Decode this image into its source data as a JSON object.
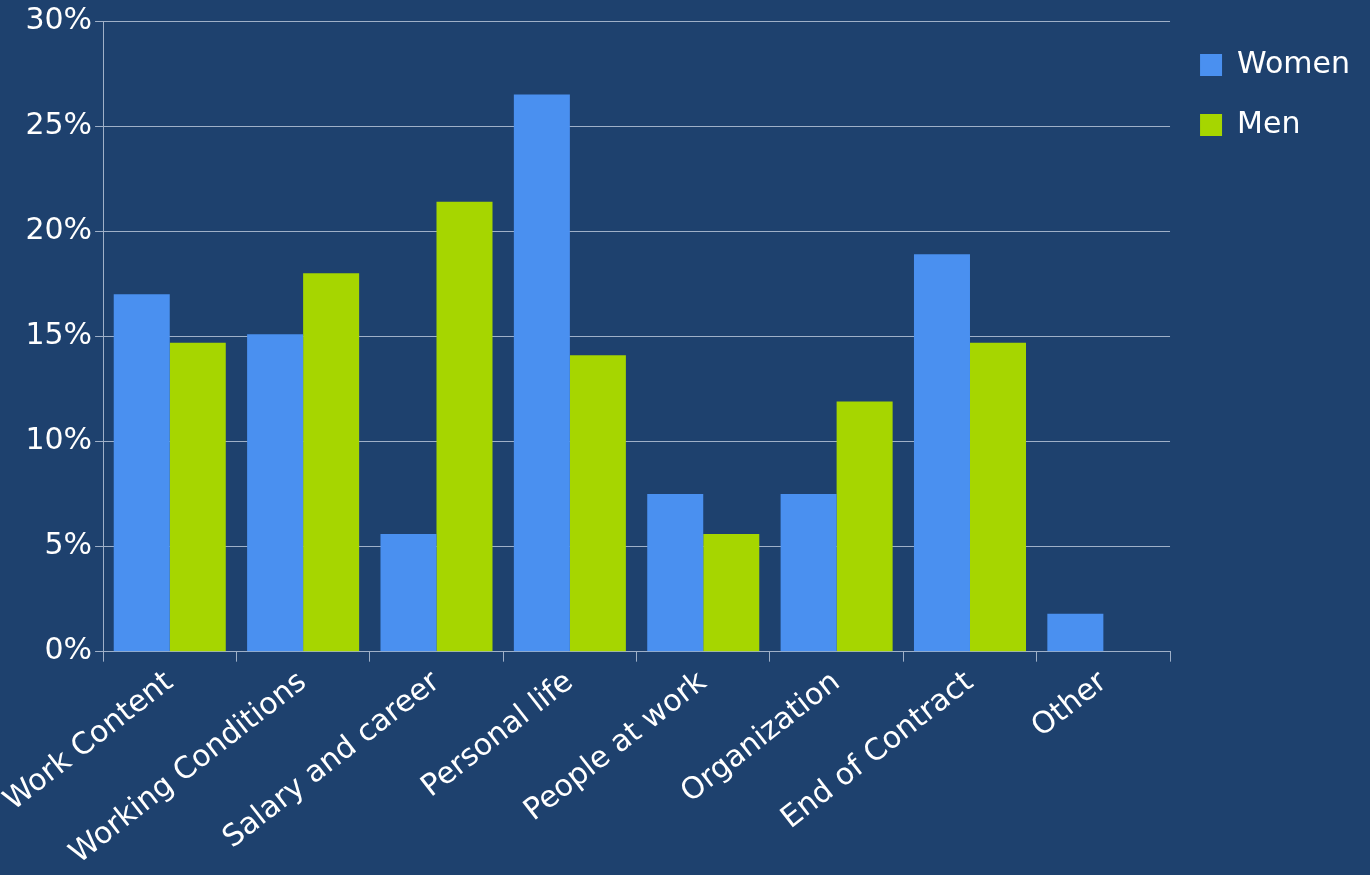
{
  "chart_data": {
    "type": "bar",
    "categories": [
      "Work Content",
      "Working Conditions",
      "Salary and career",
      "Personal life",
      "People at work",
      "Organization",
      "End of Contract",
      "Other"
    ],
    "series": [
      {
        "name": "Women",
        "color": "#4a90f0",
        "values": [
          17,
          15.1,
          5.6,
          26.5,
          7.5,
          7.5,
          18.9,
          1.8
        ]
      },
      {
        "name": "Men",
        "color": "#a6d600",
        "values": [
          14.7,
          18,
          21.4,
          14.1,
          5.6,
          11.9,
          14.7,
          null
        ]
      }
    ],
    "ylim": [
      0,
      30
    ],
    "yticks": [
      {
        "value": 0,
        "label": "0%"
      },
      {
        "value": 5,
        "label": "5%"
      },
      {
        "value": 10,
        "label": "10%"
      },
      {
        "value": 15,
        "label": "15%"
      },
      {
        "value": 20,
        "label": "20%"
      },
      {
        "value": 25,
        "label": "25%"
      },
      {
        "value": 30,
        "label": "30%"
      }
    ],
    "grid": "y",
    "legend": "top right"
  }
}
